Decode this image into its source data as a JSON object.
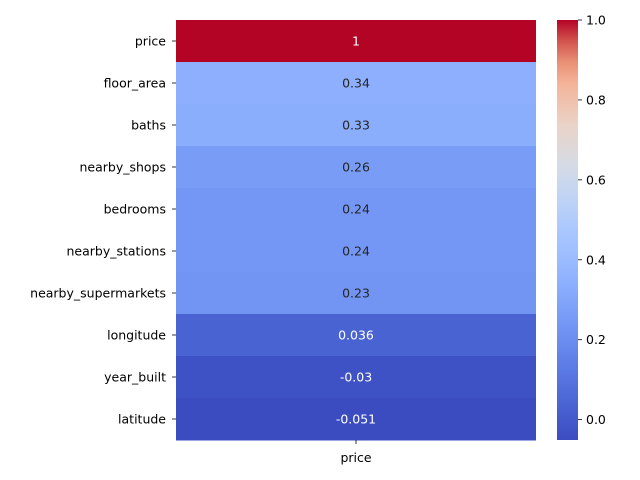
{
  "chart_data": {
    "type": "heatmap",
    "title": "",
    "xlabel": "",
    "ylabel": "",
    "columns": [
      "price"
    ],
    "rows": [
      "price",
      "floor_area",
      "baths",
      "nearby_shops",
      "bedrooms",
      "nearby_stations",
      "nearby_supermarkets",
      "longitude",
      "year_built",
      "latitude"
    ],
    "values": [
      1.0,
      0.34,
      0.33,
      0.26,
      0.24,
      0.24,
      0.23,
      0.036,
      -0.03,
      -0.051
    ],
    "annotations": [
      "1",
      "0.34",
      "0.33",
      "0.26",
      "0.24",
      "0.24",
      "0.23",
      "0.036",
      "-0.03",
      "-0.051"
    ],
    "colormap": "coolwarm",
    "colorbar": {
      "min": -0.051,
      "max": 1.0,
      "ticks": [
        0.0,
        0.2,
        0.4,
        0.6,
        0.8,
        1.0
      ],
      "tick_labels": [
        "0.0",
        "0.2",
        "0.4",
        "0.6",
        "0.8",
        "1.0"
      ]
    }
  }
}
